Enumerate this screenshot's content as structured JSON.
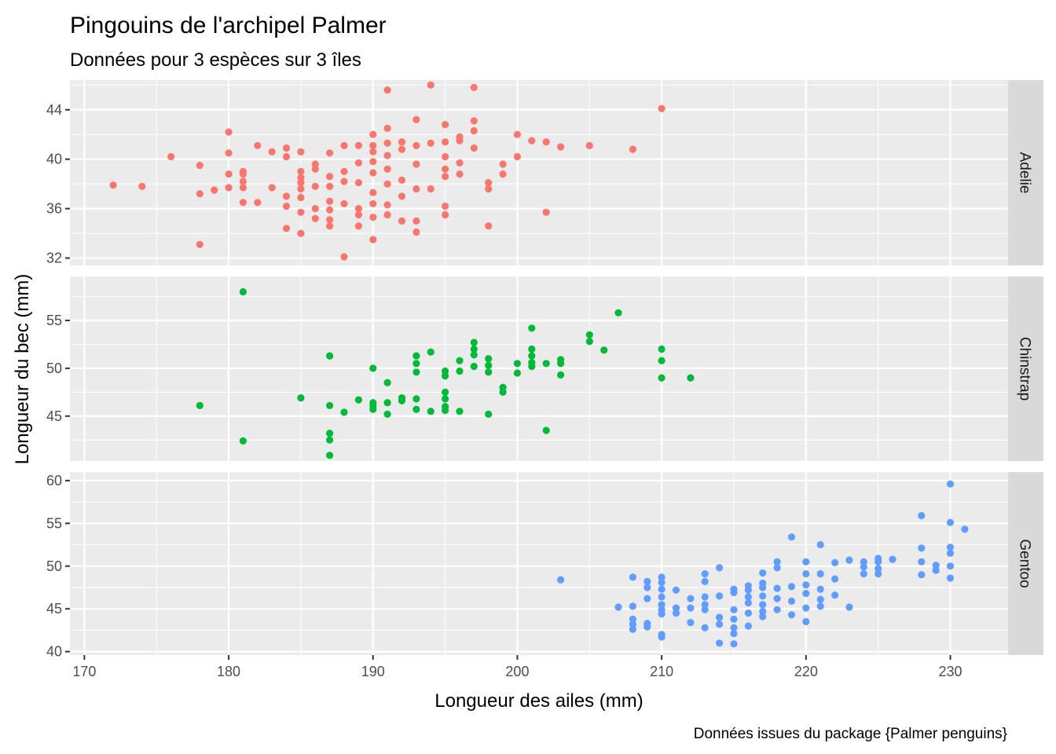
{
  "title": "Pingouins de l'archipel Palmer",
  "subtitle": "Données pour 3 espèces sur 3 îles",
  "caption": "Données issues du package {Palmer penguins}",
  "chart_data": {
    "type": "scatter",
    "xlabel": "Longueur des ailes (mm)",
    "ylabel": "Longueur du bec (mm)",
    "xlim": [
      169,
      234
    ],
    "x_ticks": [
      170,
      180,
      190,
      200,
      210,
      220,
      230
    ],
    "grid": true,
    "facet_strip_position": "right",
    "facets": [
      {
        "name": "Adelie",
        "color": "#F8766D",
        "ylim": [
          31.4,
          46.4
        ],
        "y_ticks": [
          32,
          36,
          40,
          44
        ],
        "points": [
          [
            172,
            37.9
          ],
          [
            174,
            37.8
          ],
          [
            176,
            40.2
          ],
          [
            178,
            39.5
          ],
          [
            178,
            37.2
          ],
          [
            178,
            33.1
          ],
          [
            179,
            37.5
          ],
          [
            180,
            42.2
          ],
          [
            180,
            40.5
          ],
          [
            180,
            38.8
          ],
          [
            180,
            37.7
          ],
          [
            181,
            39.0
          ],
          [
            181,
            38.8
          ],
          [
            181,
            38.2
          ],
          [
            181,
            37.7
          ],
          [
            181,
            36.5
          ],
          [
            182,
            41.1
          ],
          [
            182,
            36.5
          ],
          [
            183,
            40.6
          ],
          [
            183,
            37.7
          ],
          [
            184,
            40.9
          ],
          [
            184,
            40.2
          ],
          [
            184,
            37.0
          ],
          [
            184,
            36.2
          ],
          [
            184,
            34.4
          ],
          [
            185,
            40.6
          ],
          [
            185,
            39.0
          ],
          [
            185,
            38.5
          ],
          [
            185,
            38.1
          ],
          [
            185,
            37.6
          ],
          [
            185,
            36.9
          ],
          [
            185,
            35.7
          ],
          [
            185,
            34.0
          ],
          [
            186,
            39.6
          ],
          [
            186,
            39.2
          ],
          [
            186,
            37.8
          ],
          [
            186,
            36.0
          ],
          [
            186,
            35.2
          ],
          [
            187,
            40.5
          ],
          [
            187,
            38.6
          ],
          [
            187,
            37.8
          ],
          [
            187,
            36.6
          ],
          [
            187,
            35.9
          ],
          [
            187,
            35.1
          ],
          [
            187,
            34.6
          ],
          [
            188,
            41.1
          ],
          [
            188,
            39.0
          ],
          [
            188,
            38.2
          ],
          [
            188,
            36.4
          ],
          [
            188,
            32.1
          ],
          [
            189,
            41.1
          ],
          [
            189,
            39.7
          ],
          [
            189,
            38.1
          ],
          [
            189,
            36.0
          ],
          [
            189,
            35.5
          ],
          [
            189,
            34.6
          ],
          [
            190,
            42.0
          ],
          [
            190,
            41.1
          ],
          [
            190,
            40.6
          ],
          [
            190,
            39.8
          ],
          [
            190,
            38.9
          ],
          [
            190,
            37.3
          ],
          [
            190,
            36.4
          ],
          [
            190,
            35.3
          ],
          [
            190,
            33.5
          ],
          [
            191,
            45.6
          ],
          [
            191,
            42.5
          ],
          [
            191,
            41.3
          ],
          [
            191,
            40.3
          ],
          [
            191,
            39.2
          ],
          [
            191,
            38.0
          ],
          [
            191,
            36.3
          ],
          [
            191,
            35.5
          ],
          [
            192,
            41.4
          ],
          [
            192,
            40.8
          ],
          [
            192,
            38.3
          ],
          [
            192,
            37.0
          ],
          [
            192,
            35.0
          ],
          [
            193,
            43.2
          ],
          [
            193,
            41.1
          ],
          [
            193,
            39.6
          ],
          [
            193,
            37.6
          ],
          [
            193,
            35.0
          ],
          [
            193,
            34.1
          ],
          [
            194,
            41.3
          ],
          [
            194,
            37.6
          ],
          [
            194,
            46.0
          ],
          [
            195,
            42.8
          ],
          [
            195,
            41.4
          ],
          [
            195,
            40.2
          ],
          [
            195,
            39.2
          ],
          [
            195,
            38.6
          ],
          [
            195,
            36.2
          ],
          [
            195,
            35.5
          ],
          [
            196,
            41.8
          ],
          [
            196,
            41.5
          ],
          [
            196,
            39.7
          ],
          [
            196,
            38.8
          ],
          [
            197,
            45.8
          ],
          [
            197,
            43.1
          ],
          [
            197,
            42.3
          ],
          [
            197,
            40.9
          ],
          [
            198,
            38.1
          ],
          [
            198,
            37.6
          ],
          [
            198,
            34.6
          ],
          [
            199,
            39.6
          ],
          [
            199,
            38.8
          ],
          [
            200,
            42.0
          ],
          [
            200,
            40.2
          ],
          [
            201,
            41.5
          ],
          [
            202,
            41.4
          ],
          [
            202,
            35.7
          ],
          [
            203,
            41.0
          ],
          [
            205,
            41.1
          ],
          [
            208,
            40.8
          ],
          [
            210,
            44.1
          ]
        ]
      },
      {
        "name": "Chinstrap",
        "color": "#00BA38",
        "ylim": [
          40.3,
          59.6
        ],
        "y_ticks": [
          45,
          50,
          55
        ],
        "points": [
          [
            178,
            46.1
          ],
          [
            181,
            58.0
          ],
          [
            181,
            42.4
          ],
          [
            185,
            46.9
          ],
          [
            187,
            51.3
          ],
          [
            187,
            46.1
          ],
          [
            187,
            43.2
          ],
          [
            187,
            42.5
          ],
          [
            187,
            40.9
          ],
          [
            188,
            45.4
          ],
          [
            189,
            46.7
          ],
          [
            190,
            50.0
          ],
          [
            190,
            46.4
          ],
          [
            190,
            46.1
          ],
          [
            190,
            45.7
          ],
          [
            191,
            48.5
          ],
          [
            191,
            46.4
          ],
          [
            191,
            45.2
          ],
          [
            192,
            46.9
          ],
          [
            192,
            46.6
          ],
          [
            193,
            51.3
          ],
          [
            193,
            50.5
          ],
          [
            193,
            49.6
          ],
          [
            193,
            46.8
          ],
          [
            193,
            45.7
          ],
          [
            194,
            51.7
          ],
          [
            194,
            45.5
          ],
          [
            195,
            49.7
          ],
          [
            195,
            49.2
          ],
          [
            195,
            47.5
          ],
          [
            195,
            46.8
          ],
          [
            195,
            46.0
          ],
          [
            195,
            45.6
          ],
          [
            196,
            50.8
          ],
          [
            196,
            49.7
          ],
          [
            196,
            45.5
          ],
          [
            197,
            52.7
          ],
          [
            197,
            52.0
          ],
          [
            197,
            51.4
          ],
          [
            197,
            50.2
          ],
          [
            198,
            51.0
          ],
          [
            198,
            50.3
          ],
          [
            198,
            49.6
          ],
          [
            198,
            45.2
          ],
          [
            199,
            48.0
          ],
          [
            199,
            47.5
          ],
          [
            200,
            50.5
          ],
          [
            200,
            49.5
          ],
          [
            201,
            54.2
          ],
          [
            201,
            52.0
          ],
          [
            201,
            51.3
          ],
          [
            201,
            50.6
          ],
          [
            201,
            50.2
          ],
          [
            202,
            50.5
          ],
          [
            202,
            43.5
          ],
          [
            203,
            50.9
          ],
          [
            203,
            50.5
          ],
          [
            203,
            49.3
          ],
          [
            205,
            53.5
          ],
          [
            205,
            52.8
          ],
          [
            206,
            51.9
          ],
          [
            207,
            55.8
          ],
          [
            210,
            52.0
          ],
          [
            210,
            50.8
          ],
          [
            210,
            49.0
          ],
          [
            212,
            49.0
          ]
        ]
      },
      {
        "name": "Gentoo",
        "color": "#619CFF",
        "ylim": [
          39.6,
          61.0
        ],
        "y_ticks": [
          40,
          45,
          50,
          55,
          60
        ],
        "points": [
          [
            203,
            48.4
          ],
          [
            207,
            45.2
          ],
          [
            208,
            48.7
          ],
          [
            208,
            45.3
          ],
          [
            208,
            43.8
          ],
          [
            208,
            43.2
          ],
          [
            208,
            42.6
          ],
          [
            209,
            48.2
          ],
          [
            209,
            47.5
          ],
          [
            209,
            46.2
          ],
          [
            209,
            43.3
          ],
          [
            209,
            42.9
          ],
          [
            210,
            48.7
          ],
          [
            210,
            48.1
          ],
          [
            210,
            47.3
          ],
          [
            210,
            46.4
          ],
          [
            210,
            45.5
          ],
          [
            210,
            44.9
          ],
          [
            210,
            44.4
          ],
          [
            210,
            42.0
          ],
          [
            210,
            41.7
          ],
          [
            211,
            47.2
          ],
          [
            211,
            45.1
          ],
          [
            211,
            44.5
          ],
          [
            212,
            46.2
          ],
          [
            212,
            45.1
          ],
          [
            212,
            43.4
          ],
          [
            213,
            49.1
          ],
          [
            213,
            48.2
          ],
          [
            213,
            46.4
          ],
          [
            213,
            45.5
          ],
          [
            213,
            44.9
          ],
          [
            213,
            42.8
          ],
          [
            214,
            49.8
          ],
          [
            214,
            46.5
          ],
          [
            214,
            44.0
          ],
          [
            214,
            43.2
          ],
          [
            214,
            41.0
          ],
          [
            215,
            47.3
          ],
          [
            215,
            46.9
          ],
          [
            215,
            44.9
          ],
          [
            215,
            43.8
          ],
          [
            215,
            42.8
          ],
          [
            215,
            42.1
          ],
          [
            215,
            40.9
          ],
          [
            216,
            47.7
          ],
          [
            216,
            47.2
          ],
          [
            216,
            46.4
          ],
          [
            216,
            45.7
          ],
          [
            216,
            44.5
          ],
          [
            216,
            43.0
          ],
          [
            217,
            49.2
          ],
          [
            217,
            48.0
          ],
          [
            217,
            47.5
          ],
          [
            217,
            46.5
          ],
          [
            217,
            45.5
          ],
          [
            217,
            44.7
          ],
          [
            217,
            44.1
          ],
          [
            218,
            50.5
          ],
          [
            218,
            49.8
          ],
          [
            218,
            47.4
          ],
          [
            218,
            46.2
          ],
          [
            218,
            44.9
          ],
          [
            219,
            53.4
          ],
          [
            219,
            47.6
          ],
          [
            219,
            45.9
          ],
          [
            219,
            44.3
          ],
          [
            220,
            50.5
          ],
          [
            220,
            49.1
          ],
          [
            220,
            47.8
          ],
          [
            220,
            46.8
          ],
          [
            220,
            45.1
          ],
          [
            220,
            43.5
          ],
          [
            221,
            52.5
          ],
          [
            221,
            49.1
          ],
          [
            221,
            47.3
          ],
          [
            221,
            46.1
          ],
          [
            221,
            45.3
          ],
          [
            222,
            50.4
          ],
          [
            222,
            48.5
          ],
          [
            222,
            46.6
          ],
          [
            223,
            50.7
          ],
          [
            223,
            45.2
          ],
          [
            224,
            50.5
          ],
          [
            224,
            49.9
          ],
          [
            224,
            49.1
          ],
          [
            225,
            50.9
          ],
          [
            225,
            50.5
          ],
          [
            225,
            49.7
          ],
          [
            225,
            49.1
          ],
          [
            226,
            50.8
          ],
          [
            228,
            55.9
          ],
          [
            228,
            52.1
          ],
          [
            228,
            50.5
          ],
          [
            228,
            49.0
          ],
          [
            229,
            49.5
          ],
          [
            229,
            50.1
          ],
          [
            230,
            59.6
          ],
          [
            230,
            55.1
          ],
          [
            230,
            51.5
          ],
          [
            230,
            50.0
          ],
          [
            230,
            48.6
          ],
          [
            230,
            52.2
          ],
          [
            231,
            54.3
          ]
        ]
      }
    ]
  }
}
